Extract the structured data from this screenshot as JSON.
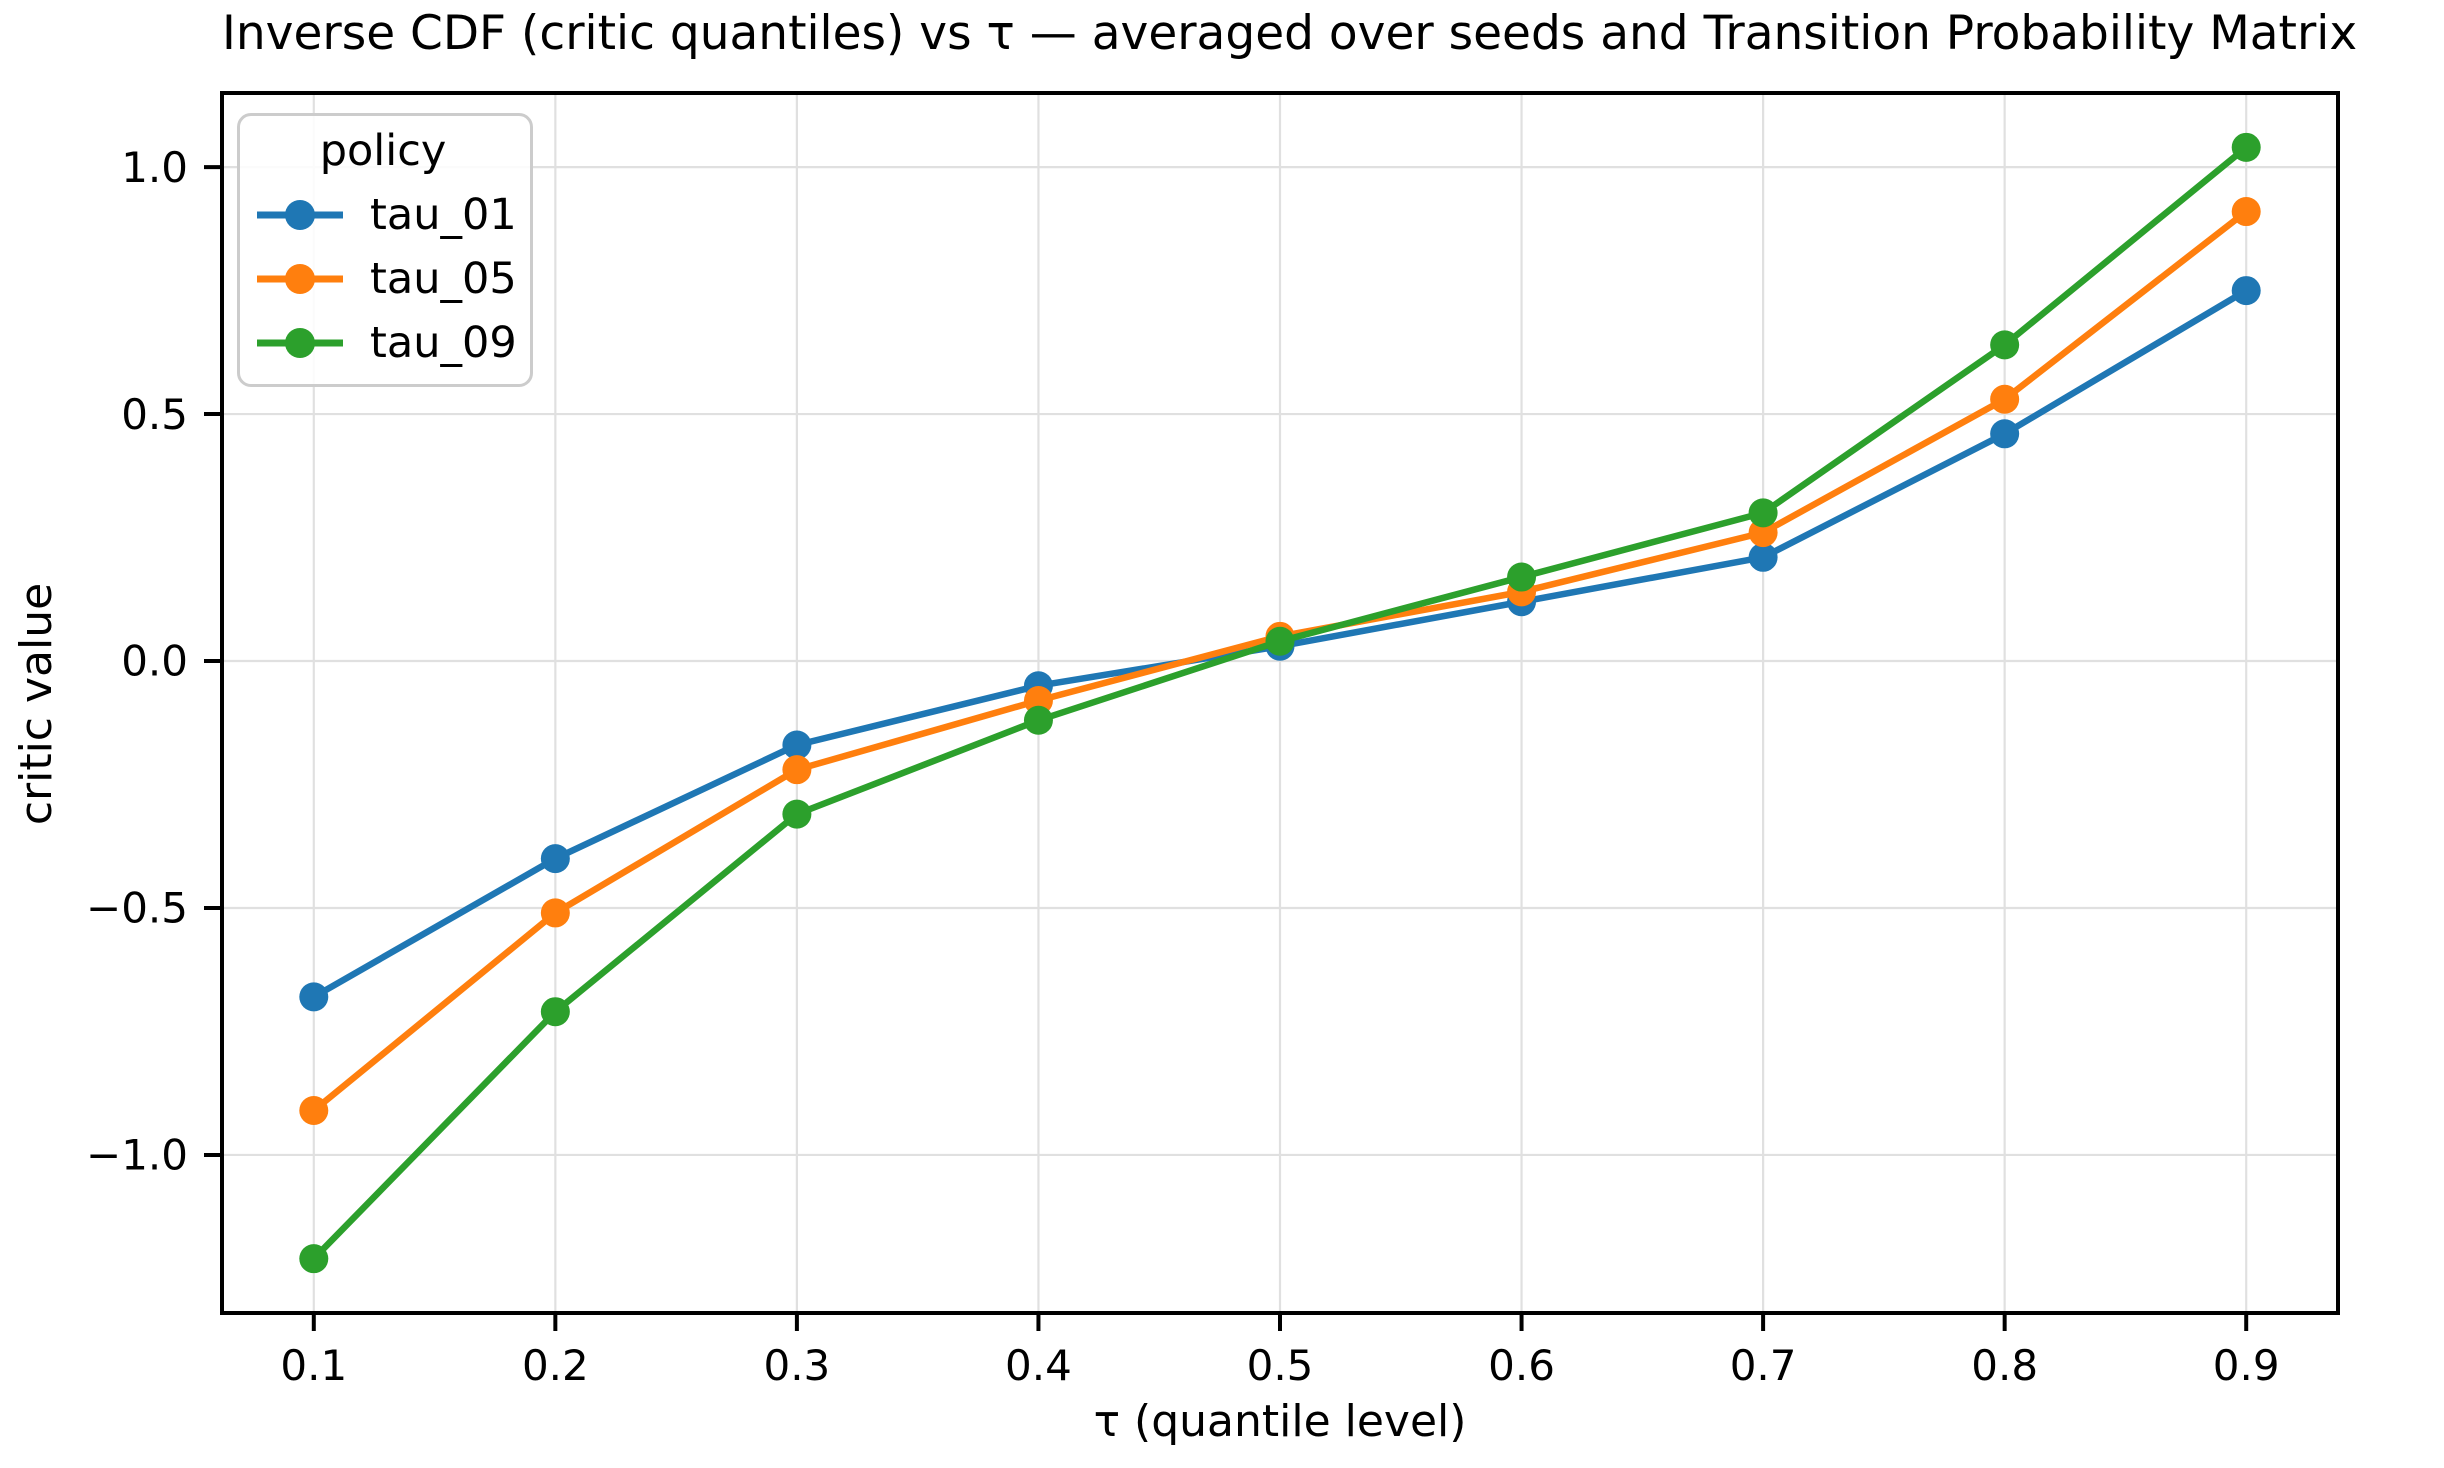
{
  "chart_data": {
    "type": "line",
    "title": "Inverse CDF (critic quantiles) vs τ — averaged over seeds and Transition Probability Matrix",
    "xlabel": "τ (quantile level)",
    "ylabel": "critic value",
    "x": [
      0.1,
      0.2,
      0.3,
      0.4,
      0.5,
      0.6,
      0.7,
      0.8,
      0.9
    ],
    "series": [
      {
        "name": "tau_01",
        "color": "#1f77b4",
        "values": [
          -0.68,
          -0.4,
          -0.17,
          -0.05,
          0.03,
          0.12,
          0.21,
          0.46,
          0.75
        ]
      },
      {
        "name": "tau_05",
        "color": "#ff7f0e",
        "values": [
          -0.91,
          -0.51,
          -0.22,
          -0.08,
          0.05,
          0.14,
          0.26,
          0.53,
          0.91
        ]
      },
      {
        "name": "tau_09",
        "color": "#2ca02c",
        "values": [
          -1.21,
          -0.71,
          -0.31,
          -0.12,
          0.04,
          0.17,
          0.3,
          0.64,
          1.04
        ]
      }
    ],
    "xlim": [
      0.062,
      0.938
    ],
    "ylim": [
      -1.32,
      1.15
    ],
    "xticks": {
      "values": [
        0.1,
        0.2,
        0.3,
        0.4,
        0.5,
        0.6,
        0.7,
        0.8,
        0.9
      ],
      "labels": [
        "0.1",
        "0.2",
        "0.3",
        "0.4",
        "0.5",
        "0.6",
        "0.7",
        "0.8",
        "0.9"
      ]
    },
    "yticks": {
      "values": [
        1.0,
        0.5,
        0.0,
        -0.5,
        -1.0
      ],
      "labels": [
        "1.0",
        "0.5",
        "0.0",
        "−0.5",
        "−1.0"
      ]
    },
    "legend": {
      "title": "policy",
      "position": "upper left"
    },
    "grid": true,
    "colors": {
      "grid": "#e0e0e0",
      "spine": "#000000",
      "tick_text": "#000000",
      "background": "#ffffff"
    }
  }
}
